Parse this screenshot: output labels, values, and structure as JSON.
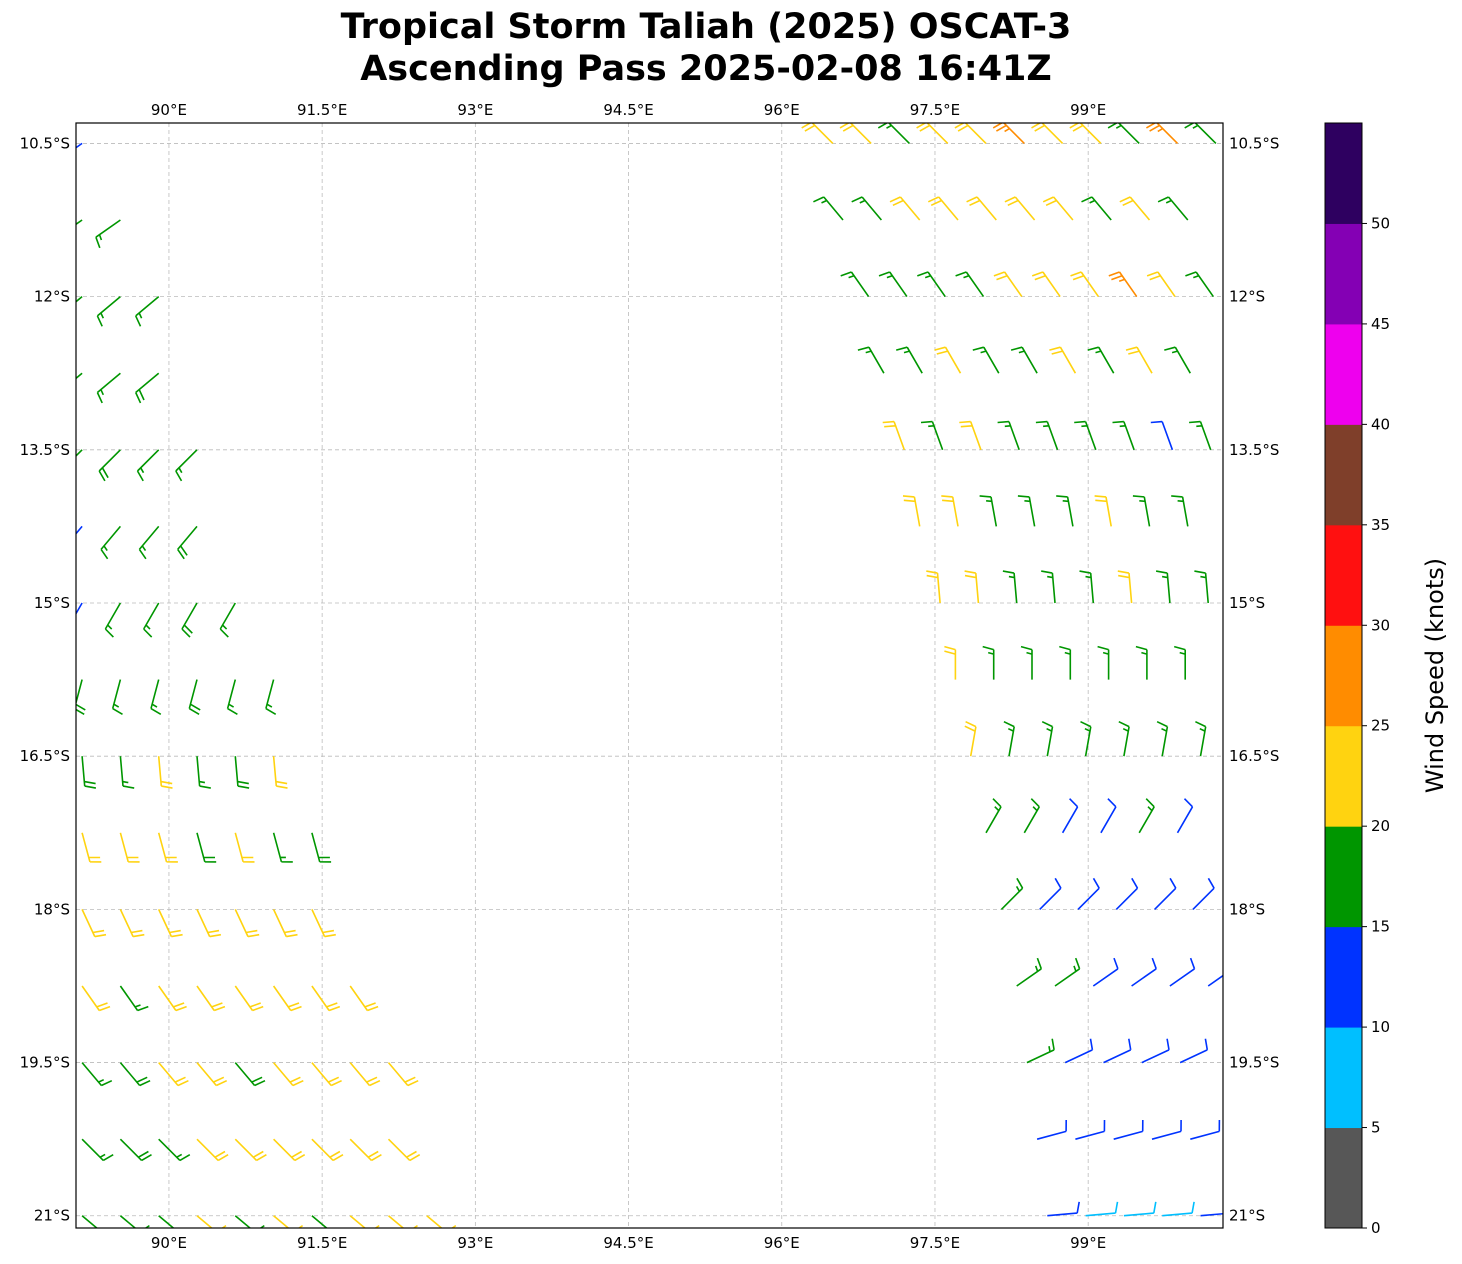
{
  "chart_data": {
    "type": "wind-barb-map",
    "title": [
      "Tropical Storm Taliah (2025) OSCAT-3",
      "Ascending Pass 2025-02-08 16:41Z"
    ],
    "lon_range": [
      89.09,
      100.32
    ],
    "lat_range_south": [
      10.3,
      21.12
    ],
    "lon_ticks": [
      90,
      91.5,
      93,
      94.5,
      96,
      97.5,
      99
    ],
    "lon_tick_labels": [
      "90°E",
      "91.5°E",
      "93°E",
      "94.5°E",
      "96°E",
      "97.5°E",
      "99°E"
    ],
    "lat_ticks": [
      10.5,
      12,
      13.5,
      15,
      16.5,
      18,
      19.5,
      21
    ],
    "lat_tick_labels": [
      "10.5°S",
      "12°S",
      "13.5°S",
      "15°S",
      "16.5°S",
      "18°S",
      "19.5°S",
      "21°S"
    ],
    "grid": true,
    "colorbar": {
      "label": "Wind Speed (knots)",
      "bounds": [
        0,
        5,
        10,
        15,
        20,
        25,
        30,
        35,
        40,
        45,
        50,
        55
      ],
      "tick_labels": [
        "0",
        "5",
        "10",
        "15",
        "20",
        "25",
        "30",
        "35",
        "40",
        "45",
        "50"
      ],
      "colors": [
        "#575757",
        "#00bfff",
        "#0033ff",
        "#009600",
        "#ffd310",
        "#ff8c00",
        "#ff1010",
        "#7f3f2a",
        "#ee00ee",
        "#8400b4",
        "#2e0060"
      ]
    },
    "barb_units": "knots; dir = direction wind blows from (deg)",
    "lon_step": 0.375,
    "swaths": [
      {
        "name": "west-swath",
        "rows": [
          {
            "lat": 10.5,
            "lon0": 89.15,
            "dir": 235,
            "spd": [
              12
            ]
          },
          {
            "lat": 11.25,
            "lon0": 89.15,
            "dir": 235,
            "spd": [
              17,
              17
            ]
          },
          {
            "lat": 12.0,
            "lon0": 89.15,
            "dir": 230,
            "spd": [
              17,
              17,
              17
            ]
          },
          {
            "lat": 12.75,
            "lon0": 89.15,
            "dir": 230,
            "spd": [
              17,
              17,
              18
            ]
          },
          {
            "lat": 13.5,
            "lon0": 89.15,
            "dir": 225,
            "spd": [
              17,
              18,
              17,
              17
            ]
          },
          {
            "lat": 14.25,
            "lon0": 89.15,
            "dir": 220,
            "spd": [
              13,
              17,
              17,
              18
            ]
          },
          {
            "lat": 15.0,
            "lon0": 89.15,
            "dir": 210,
            "spd": [
              12,
              17,
              17,
              18,
              17
            ]
          },
          {
            "lat": 15.75,
            "lon0": 89.15,
            "dir": 195,
            "spd": [
              19,
              17,
              17,
              18,
              17,
              17
            ]
          },
          {
            "lat": 16.5,
            "lon0": 89.15,
            "dir": 175,
            "spd": [
              18,
              17,
              22,
              17,
              18,
              22
            ]
          },
          {
            "lat": 17.25,
            "lon0": 89.15,
            "dir": 165,
            "spd": [
              22,
              22,
              22,
              18,
              22,
              17,
              18
            ]
          },
          {
            "lat": 18.0,
            "lon0": 89.15,
            "dir": 155,
            "spd": [
              22,
              22,
              22,
              22,
              22,
              22,
              22
            ]
          },
          {
            "lat": 18.75,
            "lon0": 89.15,
            "dir": 145,
            "spd": [
              22,
              17,
              22,
              22,
              22,
              22,
              22,
              22
            ]
          },
          {
            "lat": 19.5,
            "lon0": 89.15,
            "dir": 140,
            "spd": [
              17,
              18,
              22,
              22,
              18,
              22,
              22,
              22,
              22
            ]
          },
          {
            "lat": 20.25,
            "lon0": 89.15,
            "dir": 135,
            "spd": [
              17,
              18,
              17,
              22,
              22,
              22,
              22,
              22,
              22
            ]
          },
          {
            "lat": 21.0,
            "lon0": 89.15,
            "dir": 130,
            "spd": [
              17,
              18,
              17,
              22,
              18,
              22,
              17,
              22,
              22,
              22
            ]
          }
        ]
      },
      {
        "name": "east-swath",
        "rows": [
          {
            "lat": 10.5,
            "lon0": 96.5,
            "dir": 315,
            "spd": [
              22,
              22,
              17,
              22,
              22,
              27,
              22,
              22,
              17,
              27,
              17
            ]
          },
          {
            "lat": 11.25,
            "lon0": 96.6,
            "dir": 320,
            "spd": [
              17,
              17,
              22,
              22,
              22,
              22,
              22,
              17,
              22,
              17
            ]
          },
          {
            "lat": 12.0,
            "lon0": 96.85,
            "dir": 325,
            "spd": [
              17,
              17,
              17,
              17,
              22,
              22,
              22,
              27,
              22,
              17
            ]
          },
          {
            "lat": 12.75,
            "lon0": 97.0,
            "dir": 330,
            "spd": [
              17,
              17,
              22,
              17,
              17,
              22,
              17,
              22,
              17
            ]
          },
          {
            "lat": 13.5,
            "lon0": 97.2,
            "dir": 340,
            "spd": [
              22,
              17,
              22,
              17,
              17,
              17,
              17,
              12,
              17
            ]
          },
          {
            "lat": 14.25,
            "lon0": 97.35,
            "dir": 350,
            "spd": [
              22,
              22,
              17,
              17,
              17,
              22,
              17,
              17
            ]
          },
          {
            "lat": 15.0,
            "lon0": 97.55,
            "dir": 355,
            "spd": [
              22,
              22,
              17,
              17,
              17,
              22,
              17,
              17
            ]
          },
          {
            "lat": 15.75,
            "lon0": 97.7,
            "dir": 0,
            "spd": [
              22,
              17,
              17,
              17,
              17,
              17,
              17
            ]
          },
          {
            "lat": 16.5,
            "lon0": 97.85,
            "dir": 10,
            "spd": [
              22,
              17,
              17,
              17,
              17,
              17,
              17
            ]
          },
          {
            "lat": 17.25,
            "lon0": 98.0,
            "dir": 30,
            "spd": [
              17,
              17,
              12,
              12,
              17,
              12
            ]
          },
          {
            "lat": 18.0,
            "lon0": 98.15,
            "dir": 45,
            "spd": [
              17,
              12,
              12,
              12,
              12,
              12
            ]
          },
          {
            "lat": 18.75,
            "lon0": 98.3,
            "dir": 55,
            "spd": [
              17,
              17,
              12,
              12,
              12,
              12
            ]
          },
          {
            "lat": 19.5,
            "lon0": 98.4,
            "dir": 65,
            "spd": [
              17,
              12,
              12,
              12,
              12
            ]
          },
          {
            "lat": 20.25,
            "lon0": 98.5,
            "dir": 75,
            "spd": [
              12,
              12,
              12,
              12,
              12
            ]
          },
          {
            "lat": 21.0,
            "lon0": 98.6,
            "dir": 85,
            "spd": [
              12,
              8,
              8,
              8,
              12
            ]
          }
        ]
      }
    ]
  }
}
